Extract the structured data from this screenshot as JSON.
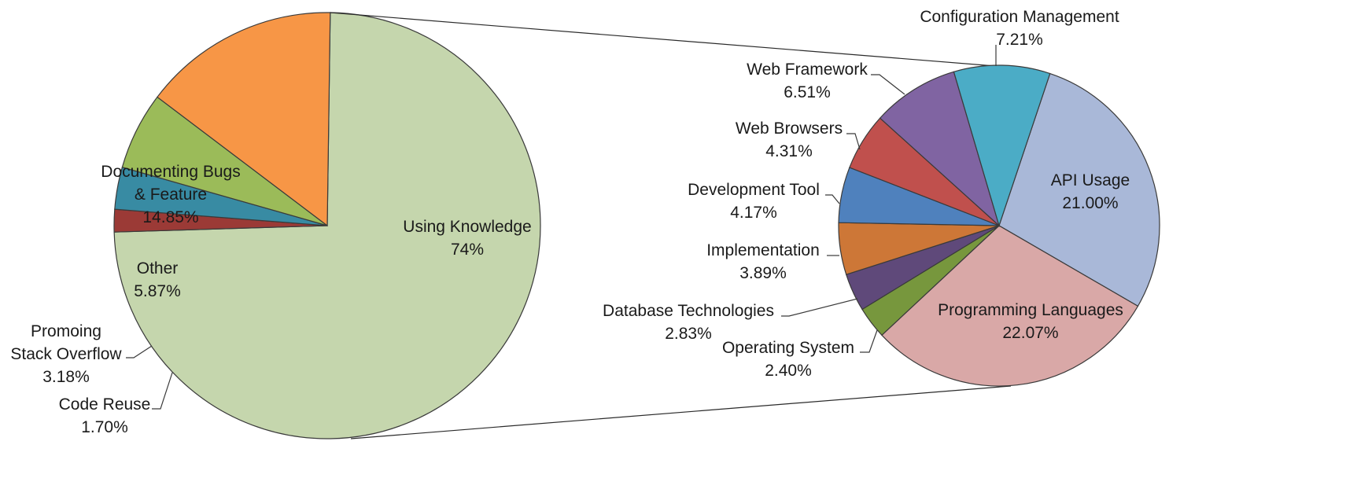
{
  "chart_data": [
    {
      "type": "pie",
      "title": "",
      "slices": [
        {
          "label_lines": [
            "Using Knowledge"
          ],
          "percent_text": "74%",
          "value": 74.0,
          "color": "#c5d6ad"
        },
        {
          "label_lines": [
            "Code Reuse"
          ],
          "percent_text": "1.70%",
          "value": 1.7,
          "color": "#9b3a36"
        },
        {
          "label_lines": [
            "Promoing",
            "Stack Overflow"
          ],
          "percent_text": "3.18%",
          "value": 3.18,
          "color": "#388ba3"
        },
        {
          "label_lines": [
            "Other"
          ],
          "percent_text": "5.87%",
          "value": 5.87,
          "color": "#9bbb59"
        },
        {
          "label_lines": [
            "Documenting Bugs",
            "& Feature"
          ],
          "percent_text": "14.85%",
          "value": 14.85,
          "color": "#f79646"
        }
      ]
    },
    {
      "type": "pie",
      "title": "",
      "breakdown_of": "Using Knowledge",
      "slices": [
        {
          "label_lines": [
            "API Usage"
          ],
          "percent_text": "21.00%",
          "value": 21.0,
          "color": "#a9b8d8"
        },
        {
          "label_lines": [
            "Programming Languages"
          ],
          "percent_text": "22.07%",
          "value": 22.07,
          "color": "#d9a8a7"
        },
        {
          "label_lines": [
            "Operating System"
          ],
          "percent_text": "2.40%",
          "value": 2.4,
          "color": "#77973d"
        },
        {
          "label_lines": [
            "Database Technologies"
          ],
          "percent_text": "2.83%",
          "value": 2.83,
          "color": "#5f497a"
        },
        {
          "label_lines": [
            "Implementation"
          ],
          "percent_text": "3.89%",
          "value": 3.89,
          "color": "#cd7737"
        },
        {
          "label_lines": [
            "Development Tool"
          ],
          "percent_text": "4.17%",
          "value": 4.17,
          "color": "#4f81bd"
        },
        {
          "label_lines": [
            "Web Browsers"
          ],
          "percent_text": "4.31%",
          "value": 4.31,
          "color": "#c0504d"
        },
        {
          "label_lines": [
            "Web Framework"
          ],
          "percent_text": "6.51%",
          "value": 6.51,
          "color": "#8064a2"
        },
        {
          "label_lines": [
            "Configuration Management"
          ],
          "percent_text": "7.21%",
          "value": 7.21,
          "color": "#4bacc6"
        }
      ]
    }
  ]
}
